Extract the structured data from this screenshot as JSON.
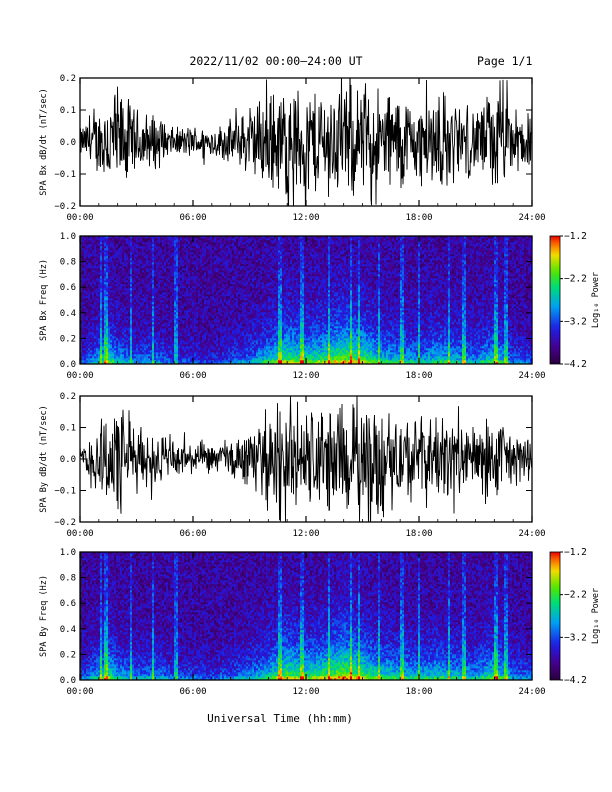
{
  "header": {
    "title": "2022/11/02  00:00–24:00 UT",
    "page": "Page 1/1"
  },
  "common_xlabel": "Universal Time (hh:mm)",
  "chart_data": [
    {
      "type": "line",
      "ylabel": "SPA Bx dB/dt (nT/sec)",
      "xlabel": "",
      "x_ticks": [
        "00:00",
        "06:00",
        "12:00",
        "18:00",
        "24:00"
      ],
      "y_ticks": [
        "0.2",
        "0.1",
        "0.0",
        "−0.1",
        "−0.2"
      ],
      "xlim": [
        0,
        24
      ],
      "ylim": [
        -0.2,
        0.2
      ],
      "series": [
        {
          "note_x_units": "hours UT",
          "x": [
            0,
            1,
            1.5,
            2,
            3,
            4,
            5,
            6,
            7,
            8,
            9,
            10,
            10.5,
            11,
            12,
            13,
            14,
            15,
            16,
            17,
            18,
            19,
            20,
            21,
            22,
            23,
            24
          ],
          "values": [
            0.05,
            0.12,
            0.2,
            0.2,
            0.12,
            0.1,
            0.05,
            0.06,
            0.05,
            0.08,
            0.12,
            0.18,
            0.2,
            0.2,
            0.2,
            0.2,
            0.2,
            0.2,
            0.2,
            0.18,
            0.14,
            0.2,
            0.14,
            0.12,
            0.2,
            0.12,
            0.1
          ]
        }
      ]
    },
    {
      "type": "heatmap",
      "ylabel": "SPA Bx Freq (Hz)",
      "xlabel": "",
      "x_ticks": [
        "00:00",
        "06:00",
        "12:00",
        "18:00",
        "24:00"
      ],
      "y_ticks": [
        "1.0",
        "0.8",
        "0.6",
        "0.4",
        "0.2",
        "0.0"
      ],
      "xlim": [
        0,
        24
      ],
      "ylim": [
        0,
        1
      ],
      "colorbar": {
        "label": "Log₁₀ Power",
        "ticks": [
          "−1.2",
          "−2.2",
          "−3.2",
          "−4.2"
        ],
        "range": [
          -4.2,
          -1.2
        ]
      },
      "activity": {
        "x": [
          0,
          1,
          1.5,
          2,
          3,
          4,
          5,
          6,
          7,
          8,
          9,
          10,
          11,
          12,
          13,
          14,
          15,
          16,
          17,
          18,
          19,
          20,
          21,
          22,
          23,
          24
        ],
        "values": [
          0.2,
          0.5,
          0.7,
          0.5,
          0.35,
          0.4,
          0.25,
          0.25,
          0.2,
          0.3,
          0.4,
          0.6,
          0.8,
          0.7,
          0.75,
          0.9,
          0.8,
          0.6,
          0.55,
          0.5,
          0.6,
          0.55,
          0.45,
          0.65,
          0.35,
          0.3
        ]
      }
    },
    {
      "type": "line",
      "ylabel": "SPA By dB/dt (nT/sec)",
      "xlabel": "",
      "x_ticks": [
        "00:00",
        "06:00",
        "12:00",
        "18:00",
        "24:00"
      ],
      "y_ticks": [
        "0.2",
        "0.1",
        "0.0",
        "−0.1",
        "−0.2"
      ],
      "xlim": [
        0,
        24
      ],
      "ylim": [
        -0.2,
        0.2
      ],
      "series": [
        {
          "x": [
            0,
            1,
            1.5,
            2,
            3,
            4,
            5,
            6,
            7,
            8,
            9,
            10,
            10.5,
            11,
            12,
            13,
            14,
            15,
            16,
            17,
            18,
            19,
            20,
            21,
            22,
            23,
            24
          ],
          "values": [
            0.05,
            0.14,
            0.2,
            0.2,
            0.12,
            0.1,
            0.08,
            0.06,
            0.05,
            0.08,
            0.1,
            0.14,
            0.2,
            0.2,
            0.2,
            0.2,
            0.2,
            0.2,
            0.2,
            0.16,
            0.15,
            0.17,
            0.12,
            0.12,
            0.16,
            0.1,
            0.07
          ]
        }
      ]
    },
    {
      "type": "heatmap",
      "ylabel": "SPA By Freq (Hz)",
      "xlabel": "Universal Time (hh:mm)",
      "x_ticks": [
        "00:00",
        "06:00",
        "12:00",
        "18:00",
        "24:00"
      ],
      "y_ticks": [
        "1.0",
        "0.8",
        "0.6",
        "0.4",
        "0.2",
        "0.0"
      ],
      "xlim": [
        0,
        24
      ],
      "ylim": [
        0,
        1
      ],
      "colorbar": {
        "label": "Log₁₀ Power",
        "ticks": [
          "−1.2",
          "−2.2",
          "−3.2",
          "−4.2"
        ],
        "range": [
          -4.2,
          -1.2
        ]
      },
      "activity": {
        "x": [
          0,
          1,
          1.5,
          2,
          3,
          4,
          5,
          6,
          7,
          8,
          9,
          10,
          11,
          12,
          13,
          14,
          15,
          16,
          17,
          18,
          19,
          20,
          21,
          22,
          23,
          24
        ],
        "values": [
          0.25,
          0.55,
          0.75,
          0.5,
          0.4,
          0.45,
          0.3,
          0.3,
          0.25,
          0.35,
          0.45,
          0.6,
          0.85,
          0.7,
          0.8,
          0.95,
          0.8,
          0.65,
          0.6,
          0.55,
          0.6,
          0.55,
          0.5,
          0.7,
          0.4,
          0.35
        ]
      }
    }
  ]
}
